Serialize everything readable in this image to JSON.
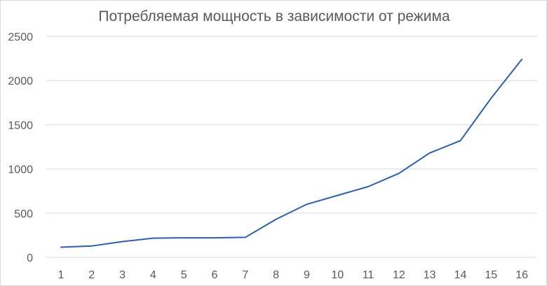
{
  "chart_data": {
    "type": "line",
    "title": "Потребляемая мощность в зависимости от режима",
    "xlabel": "",
    "ylabel": "",
    "categories": [
      "1",
      "2",
      "3",
      "4",
      "5",
      "6",
      "7",
      "8",
      "9",
      "10",
      "11",
      "12",
      "13",
      "14",
      "15",
      "16"
    ],
    "series": [
      {
        "values": [
          115,
          128,
          178,
          217,
          221,
          221,
          226,
          430,
          600,
          700,
          800,
          950,
          1180,
          1320,
          1800,
          2240
        ],
        "color": "#2e5fa8"
      }
    ],
    "ylim": [
      0,
      2500
    ],
    "yticks": [
      0,
      500,
      1000,
      1500,
      2000,
      2500
    ],
    "grid": true,
    "legend": "none"
  }
}
